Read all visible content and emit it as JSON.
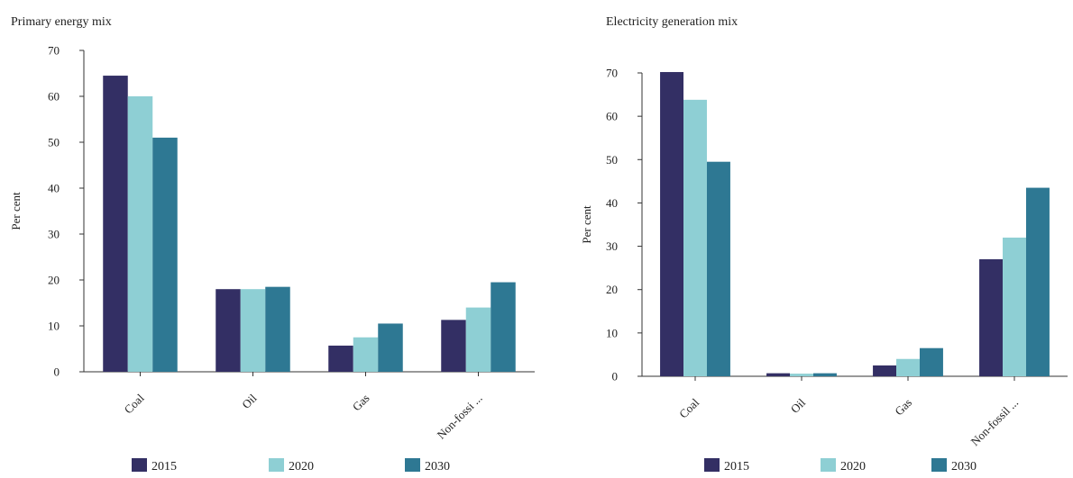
{
  "colors": {
    "2015": "#332f64",
    "2020": "#8ecfd4",
    "2030": "#2e7893"
  },
  "chart_data": [
    {
      "type": "bar",
      "title": "Primary energy mix",
      "ylabel": "Per cent",
      "xlabel": "",
      "ylim": [
        0,
        70
      ],
      "yticks": [
        0,
        10,
        20,
        30,
        40,
        50,
        60,
        70
      ],
      "categories": [
        "Coal",
        "Oil",
        "Gas",
        "Non-fossi ..."
      ],
      "series": [
        {
          "name": "2015",
          "values": [
            64.5,
            18,
            5.7,
            11.3
          ]
        },
        {
          "name": "2020",
          "values": [
            60,
            18,
            7.5,
            14
          ]
        },
        {
          "name": "2030",
          "values": [
            51,
            18.5,
            10.5,
            19.5
          ]
        }
      ],
      "legend": "bottom",
      "grid": false
    },
    {
      "type": "bar",
      "title": "Electricity generation mix",
      "ylabel": "Per cent",
      "xlabel": "",
      "ylim": [
        0,
        70
      ],
      "yticks": [
        0,
        10,
        20,
        30,
        40,
        50,
        60,
        70
      ],
      "categories": [
        "Coal",
        "Oil",
        "Gas",
        "Non-fossil ..."
      ],
      "series": [
        {
          "name": "2015",
          "values": [
            70.2,
            0.7,
            2.5,
            27
          ]
        },
        {
          "name": "2020",
          "values": [
            63.8,
            0.6,
            4,
            32
          ]
        },
        {
          "name": "2030",
          "values": [
            49.5,
            0.7,
            6.5,
            43.5
          ]
        }
      ],
      "legend": "bottom",
      "grid": false
    }
  ]
}
